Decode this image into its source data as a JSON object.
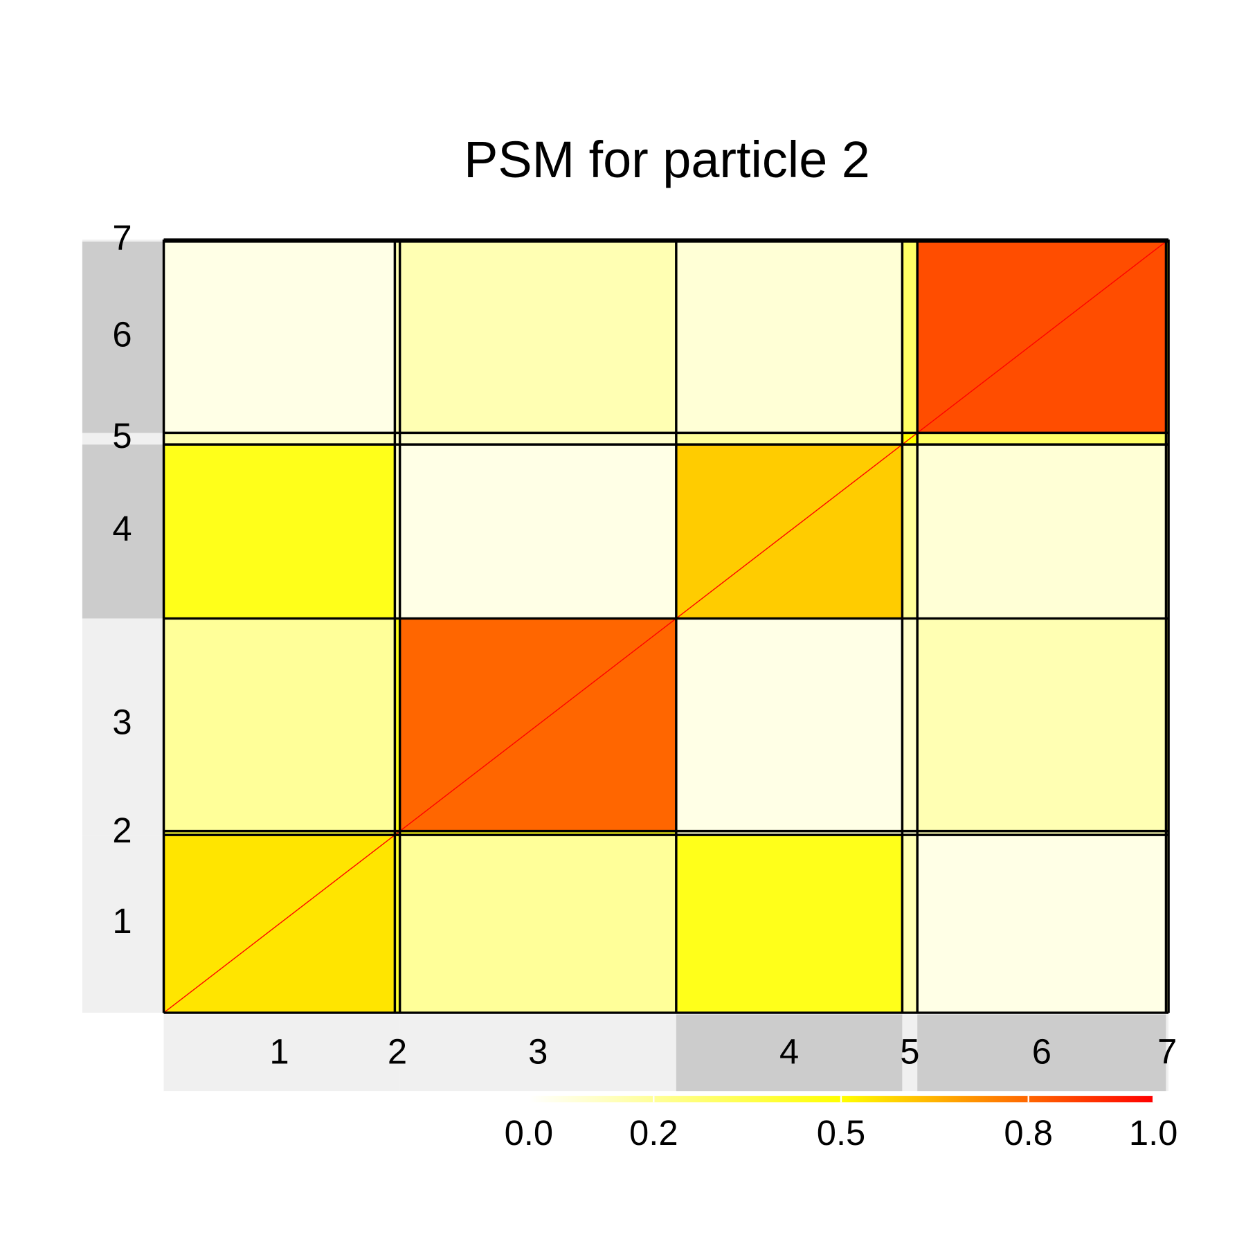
{
  "chart_data": {
    "type": "heatmap",
    "title": "PSM for particle 2",
    "clusters": [
      "1",
      "2",
      "3",
      "4",
      "5",
      "6",
      "7"
    ],
    "cluster_sizes": [
      92,
      2,
      110,
      90,
      6,
      99,
      1
    ],
    "values": [
      [
        0.55,
        0.4,
        0.2,
        0.45,
        0.15,
        0.05,
        0.2
      ],
      [
        0.4,
        0.6,
        0.45,
        0.1,
        0.1,
        0.15,
        0.2
      ],
      [
        0.2,
        0.45,
        0.8,
        0.05,
        0.1,
        0.15,
        0.3
      ],
      [
        0.45,
        0.1,
        0.05,
        0.6,
        0.2,
        0.08,
        0.2
      ],
      [
        0.15,
        0.1,
        0.1,
        0.2,
        0.5,
        0.3,
        0.3
      ],
      [
        0.05,
        0.15,
        0.15,
        0.08,
        0.3,
        0.85,
        0.5
      ],
      [
        0.2,
        0.2,
        0.3,
        0.2,
        0.3,
        0.5,
        1
      ]
    ],
    "colorscale": [
      "#ffffff",
      "#ffff00",
      "#ff0000"
    ],
    "strip_colors": [
      "#f0f0f0",
      "#f0f0f0",
      "#f0f0f0",
      "#cccccc",
      "#f0f0f0",
      "#cccccc",
      "#f0f0f0"
    ],
    "clim": [
      0,
      1
    ],
    "cticks": [
      {
        "value": 0,
        "label": "0.0"
      },
      0.2,
      0.5,
      0.8,
      {
        "value": 1,
        "label": "1.0"
      }
    ]
  }
}
